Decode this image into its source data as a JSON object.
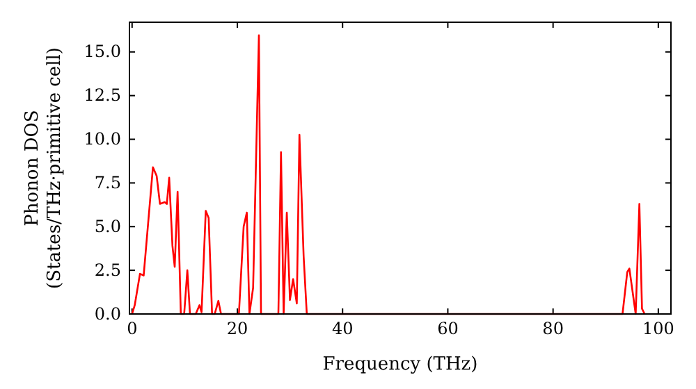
{
  "chart_data": {
    "type": "line",
    "xlabel": "Frequency (THz)",
    "ylabel": "Phonon DOS\n(States/THz·primitive cell)",
    "xlim": [
      -0.5,
      102.4
    ],
    "ylim": [
      0,
      16.7
    ],
    "xticks": [
      0,
      20,
      40,
      60,
      80,
      100
    ],
    "yticks": [
      {
        "value": 0,
        "label": "0.0"
      },
      {
        "value": 2.5,
        "label": "2.5"
      },
      {
        "value": 5,
        "label": "5.0"
      },
      {
        "value": 7.5,
        "label": "7.5"
      },
      {
        "value": 10,
        "label": "10.0"
      },
      {
        "value": 12.5,
        "label": "12.5"
      },
      {
        "value": 15,
        "label": "15.0"
      }
    ],
    "grid": false,
    "series": [
      {
        "color": "#ff0000",
        "x": [
          0,
          0.5,
          1.5,
          2.2,
          3.96,
          4.67,
          5.3,
          6.2,
          6.6,
          7.05,
          7.67,
          8.1,
          8.65,
          9.26,
          9.9,
          10.5,
          11.0,
          12.1,
          12.8,
          13.2,
          14.0,
          14.55,
          15.2,
          15.7,
          16.4,
          16.9,
          20.3,
          21.2,
          21.8,
          22.3,
          23.0,
          24.1,
          24.5,
          27.8,
          28.3,
          28.8,
          29.4,
          30.0,
          30.6,
          31.3,
          31.8,
          32.6,
          33.2,
          93.2,
          94.1,
          94.5,
          95.7,
          96.4,
          96.9,
          97.4
        ],
        "values": [
          0,
          0.5,
          2.3,
          2.2,
          8.4,
          7.9,
          6.3,
          6.4,
          6.3,
          7.8,
          3.9,
          2.7,
          7.0,
          0,
          0,
          2.5,
          0,
          0,
          0.5,
          0.1,
          5.9,
          5.5,
          0,
          0,
          0.75,
          0,
          0,
          5.0,
          5.8,
          0,
          1.5,
          15.95,
          0,
          0,
          9.26,
          0,
          5.8,
          0.8,
          2.0,
          0.6,
          10.26,
          3.3,
          0,
          0,
          2.4,
          2.6,
          0,
          6.3,
          0.3,
          0
        ]
      }
    ]
  }
}
